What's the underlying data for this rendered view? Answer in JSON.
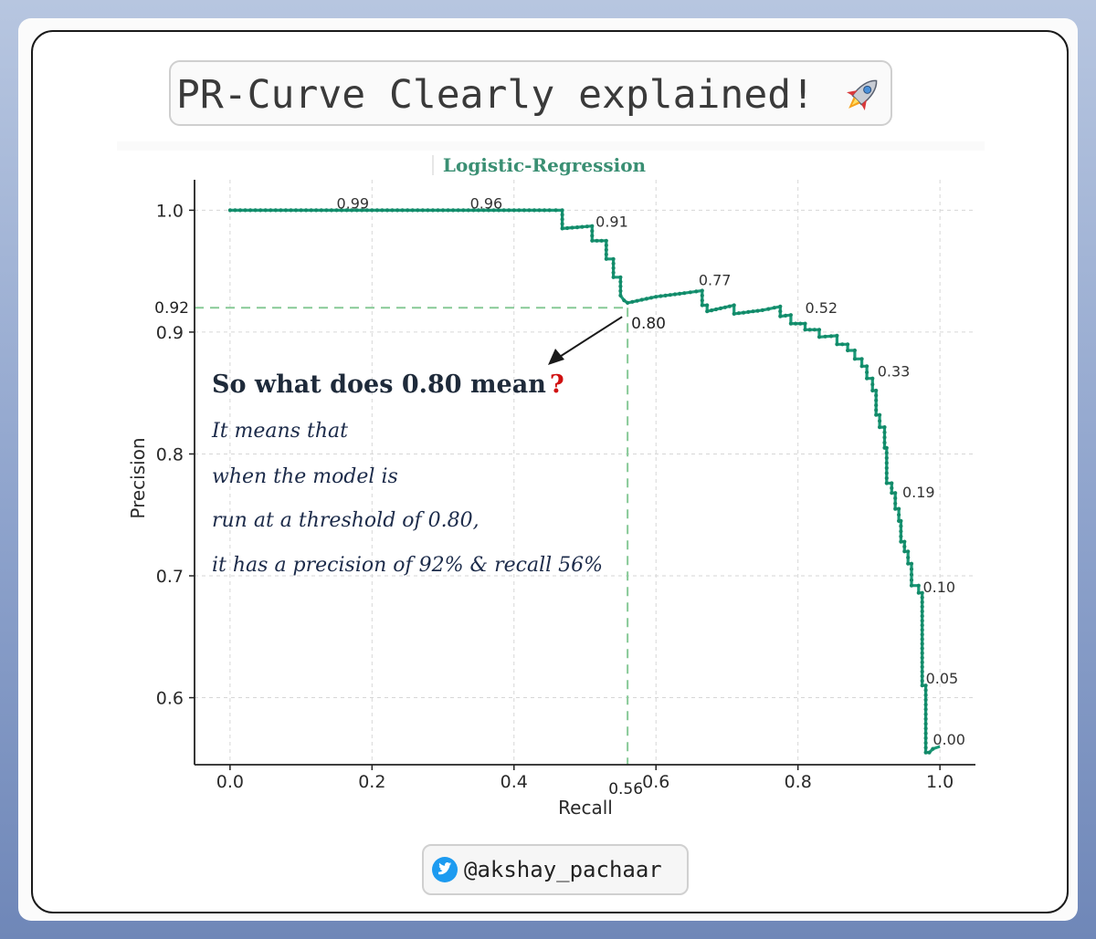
{
  "header": {
    "title": "PR-Curve Clearly explained!"
  },
  "annotation": {
    "heading": "So what does 0.80 mean",
    "question_mark": "?",
    "lines": [
      "It means that",
      "when the model is",
      "run at a threshold of 0.80,",
      "it has a precision of 92% & recall 56%"
    ]
  },
  "footer": {
    "handle": "@akshay_pachaar"
  },
  "colors": {
    "curve": "#1a9a78",
    "guide": "#86c996",
    "arrow": "#1a1a1a",
    "accent_q": "#d01010",
    "twitter": "#1d9bf0"
  },
  "chart_data": {
    "type": "line",
    "title": "Logistic-Regression",
    "xlabel": "Recall",
    "ylabel": "Precision",
    "xlim": [
      -0.05,
      1.05
    ],
    "ylim": [
      0.545,
      1.025
    ],
    "xticks": [
      "0.0",
      "0.2",
      "0.4",
      "0.6",
      "0.8",
      "1.0"
    ],
    "yticks": [
      "0.6",
      "0.7",
      "0.8",
      "0.9",
      "1.0"
    ],
    "grid": true,
    "series": [
      {
        "points": [
          [
            0.0,
            1.0
          ],
          [
            0.05,
            1.0
          ],
          [
            0.1,
            1.0
          ],
          [
            0.15,
            1.0
          ],
          [
            0.2,
            1.0
          ],
          [
            0.25,
            1.0
          ],
          [
            0.3,
            1.0
          ],
          [
            0.35,
            1.0
          ],
          [
            0.4,
            1.0
          ],
          [
            0.45,
            1.0
          ],
          [
            0.468,
            1.0
          ],
          [
            0.468,
            0.985
          ],
          [
            0.51,
            0.987
          ],
          [
            0.51,
            0.975
          ],
          [
            0.53,
            0.975
          ],
          [
            0.53,
            0.96
          ],
          [
            0.54,
            0.96
          ],
          [
            0.54,
            0.945
          ],
          [
            0.55,
            0.945
          ],
          [
            0.55,
            0.93
          ],
          [
            0.555,
            0.926
          ],
          [
            0.56,
            0.924
          ],
          [
            0.6,
            0.929
          ],
          [
            0.64,
            0.932
          ],
          [
            0.665,
            0.934
          ],
          [
            0.665,
            0.922
          ],
          [
            0.672,
            0.922
          ],
          [
            0.672,
            0.917
          ],
          [
            0.71,
            0.922
          ],
          [
            0.71,
            0.915
          ],
          [
            0.75,
            0.918
          ],
          [
            0.775,
            0.921
          ],
          [
            0.775,
            0.913
          ],
          [
            0.79,
            0.914
          ],
          [
            0.79,
            0.907
          ],
          [
            0.81,
            0.907
          ],
          [
            0.81,
            0.902
          ],
          [
            0.83,
            0.902
          ],
          [
            0.83,
            0.896
          ],
          [
            0.855,
            0.897
          ],
          [
            0.855,
            0.89
          ],
          [
            0.87,
            0.89
          ],
          [
            0.87,
            0.885
          ],
          [
            0.88,
            0.885
          ],
          [
            0.88,
            0.878
          ],
          [
            0.89,
            0.878
          ],
          [
            0.89,
            0.872
          ],
          [
            0.897,
            0.872
          ],
          [
            0.897,
            0.862
          ],
          [
            0.905,
            0.862
          ],
          [
            0.905,
            0.852
          ],
          [
            0.91,
            0.852
          ],
          [
            0.91,
            0.832
          ],
          [
            0.915,
            0.832
          ],
          [
            0.915,
            0.822
          ],
          [
            0.922,
            0.822
          ],
          [
            0.922,
            0.805
          ],
          [
            0.925,
            0.805
          ],
          [
            0.925,
            0.776
          ],
          [
            0.932,
            0.776
          ],
          [
            0.932,
            0.768
          ],
          [
            0.937,
            0.768
          ],
          [
            0.937,
            0.755
          ],
          [
            0.942,
            0.755
          ],
          [
            0.942,
            0.745
          ],
          [
            0.945,
            0.745
          ],
          [
            0.945,
            0.728
          ],
          [
            0.95,
            0.728
          ],
          [
            0.95,
            0.72
          ],
          [
            0.955,
            0.72
          ],
          [
            0.955,
            0.71
          ],
          [
            0.96,
            0.71
          ],
          [
            0.96,
            0.692
          ],
          [
            0.97,
            0.692
          ],
          [
            0.97,
            0.686
          ],
          [
            0.975,
            0.686
          ],
          [
            0.975,
            0.61
          ],
          [
            0.98,
            0.61
          ],
          [
            0.98,
            0.555
          ],
          [
            0.985,
            0.555
          ],
          [
            0.99,
            0.558
          ],
          [
            1.0,
            0.56
          ]
        ]
      }
    ],
    "threshold_labels": [
      {
        "text": "0.99",
        "x": 0.15,
        "y": 1.0
      },
      {
        "text": "0.96",
        "x": 0.338,
        "y": 1.0
      },
      {
        "text": "0.91",
        "x": 0.515,
        "y": 0.985
      },
      {
        "text": "0.77",
        "x": 0.66,
        "y": 0.937
      },
      {
        "text": "0.52",
        "x": 0.81,
        "y": 0.914
      },
      {
        "text": "0.33",
        "x": 0.912,
        "y": 0.862
      },
      {
        "text": "0.19",
        "x": 0.947,
        "y": 0.763
      },
      {
        "text": "0.10",
        "x": 0.976,
        "y": 0.685
      },
      {
        "text": "0.05",
        "x": 0.98,
        "y": 0.61
      },
      {
        "text": "0.00",
        "x": 0.99,
        "y": 0.56
      }
    ],
    "highlight": {
      "recall": 0.56,
      "precision": 0.92,
      "threshold_label": "0.80",
      "recall_label": "0.56",
      "precision_label": "0.92"
    }
  }
}
